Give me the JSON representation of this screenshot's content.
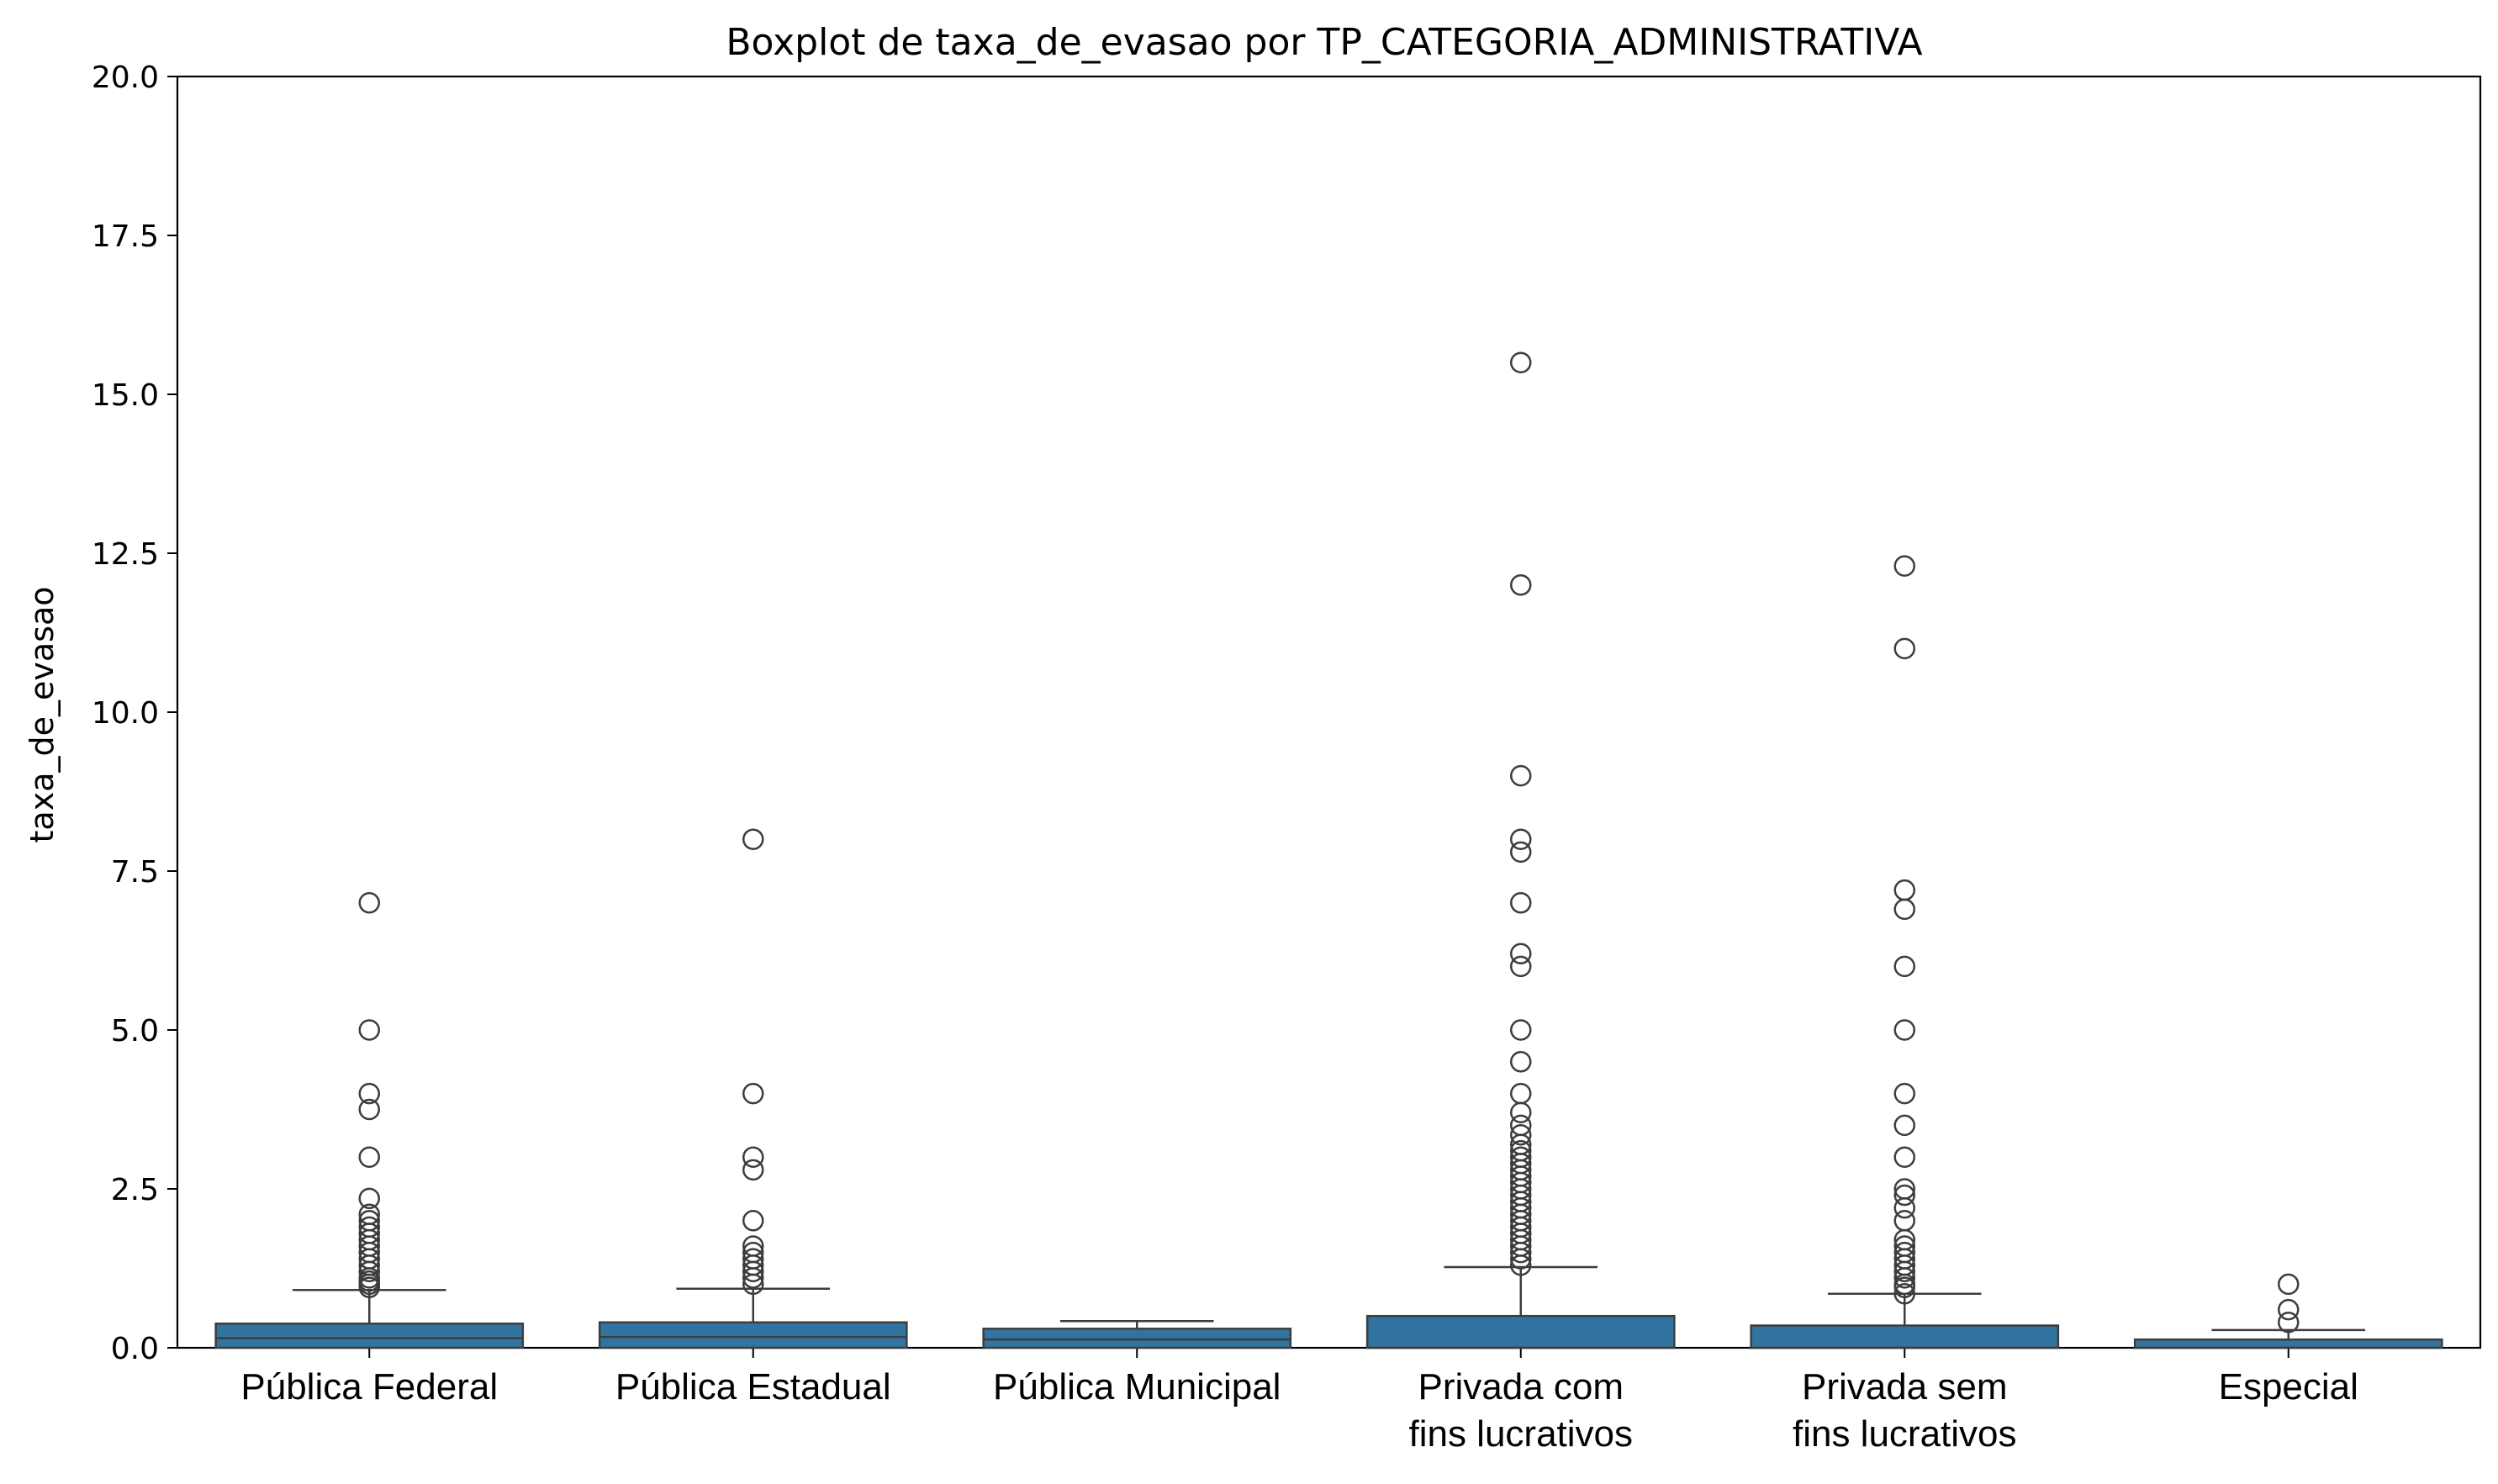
{
  "chart_data": {
    "type": "box",
    "title": "Boxplot de taxa_de_evasao por TP_CATEGORIA_ADMINISTRATIVA",
    "xlabel": "",
    "ylabel": "taxa_de_evasao",
    "ylim": [
      0,
      20
    ],
    "yticks": [
      "0.0",
      "2.5",
      "5.0",
      "7.5",
      "10.0",
      "12.5",
      "15.0",
      "17.5",
      "20.0"
    ],
    "grid": false,
    "box_color": "#3274a1",
    "line_color": "#3d3d3d",
    "categories": [
      [
        "Pública Federal"
      ],
      [
        "Pública Estadual"
      ],
      [
        "Pública Municipal"
      ],
      [
        "Privada com",
        "fins lucrativos"
      ],
      [
        "Privada sem",
        "fins lucrativos"
      ],
      [
        "Especial"
      ]
    ],
    "boxes": [
      {
        "min": 0.0,
        "q1": 0.0,
        "median": 0.15,
        "q3": 0.38,
        "max": 0.91,
        "outliers": [
          0.95,
          1.0,
          1.05,
          1.1,
          1.2,
          1.3,
          1.4,
          1.5,
          1.6,
          1.7,
          1.8,
          1.9,
          2.0,
          2.1,
          2.35,
          3.0,
          3.75,
          4.0,
          5.0,
          7.0
        ]
      },
      {
        "min": 0.0,
        "q1": 0.0,
        "median": 0.17,
        "q3": 0.4,
        "max": 0.93,
        "outliers": [
          1.0,
          1.1,
          1.2,
          1.3,
          1.4,
          1.5,
          1.6,
          2.0,
          2.8,
          3.0,
          4.0,
          8.0
        ]
      },
      {
        "min": 0.0,
        "q1": 0.0,
        "median": 0.13,
        "q3": 0.3,
        "max": 0.42,
        "outliers": []
      },
      {
        "min": 0.0,
        "q1": 0.0,
        "median": 0.0,
        "q3": 0.5,
        "max": 1.27,
        "outliers": [
          1.3,
          1.4,
          1.5,
          1.6,
          1.7,
          1.8,
          1.9,
          2.0,
          2.1,
          2.2,
          2.3,
          2.4,
          2.5,
          2.6,
          2.7,
          2.8,
          2.9,
          3.0,
          3.1,
          3.2,
          3.35,
          3.5,
          3.7,
          4.0,
          4.5,
          5.0,
          6.0,
          6.2,
          7.0,
          7.8,
          8.0,
          9.0,
          12.0,
          15.5
        ]
      },
      {
        "min": 0.0,
        "q1": 0.0,
        "median": 0.0,
        "q3": 0.35,
        "max": 0.85,
        "outliers": [
          0.85,
          0.95,
          1.0,
          1.1,
          1.2,
          1.3,
          1.4,
          1.5,
          1.6,
          1.7,
          2.0,
          2.2,
          2.4,
          2.5,
          3.0,
          3.5,
          4.0,
          5.0,
          6.0,
          6.9,
          7.2,
          11.0,
          12.3
        ]
      },
      {
        "min": 0.0,
        "q1": 0.0,
        "median": 0.0,
        "q3": 0.13,
        "max": 0.28,
        "outliers": [
          0.4,
          0.6,
          1.0
        ]
      }
    ]
  }
}
